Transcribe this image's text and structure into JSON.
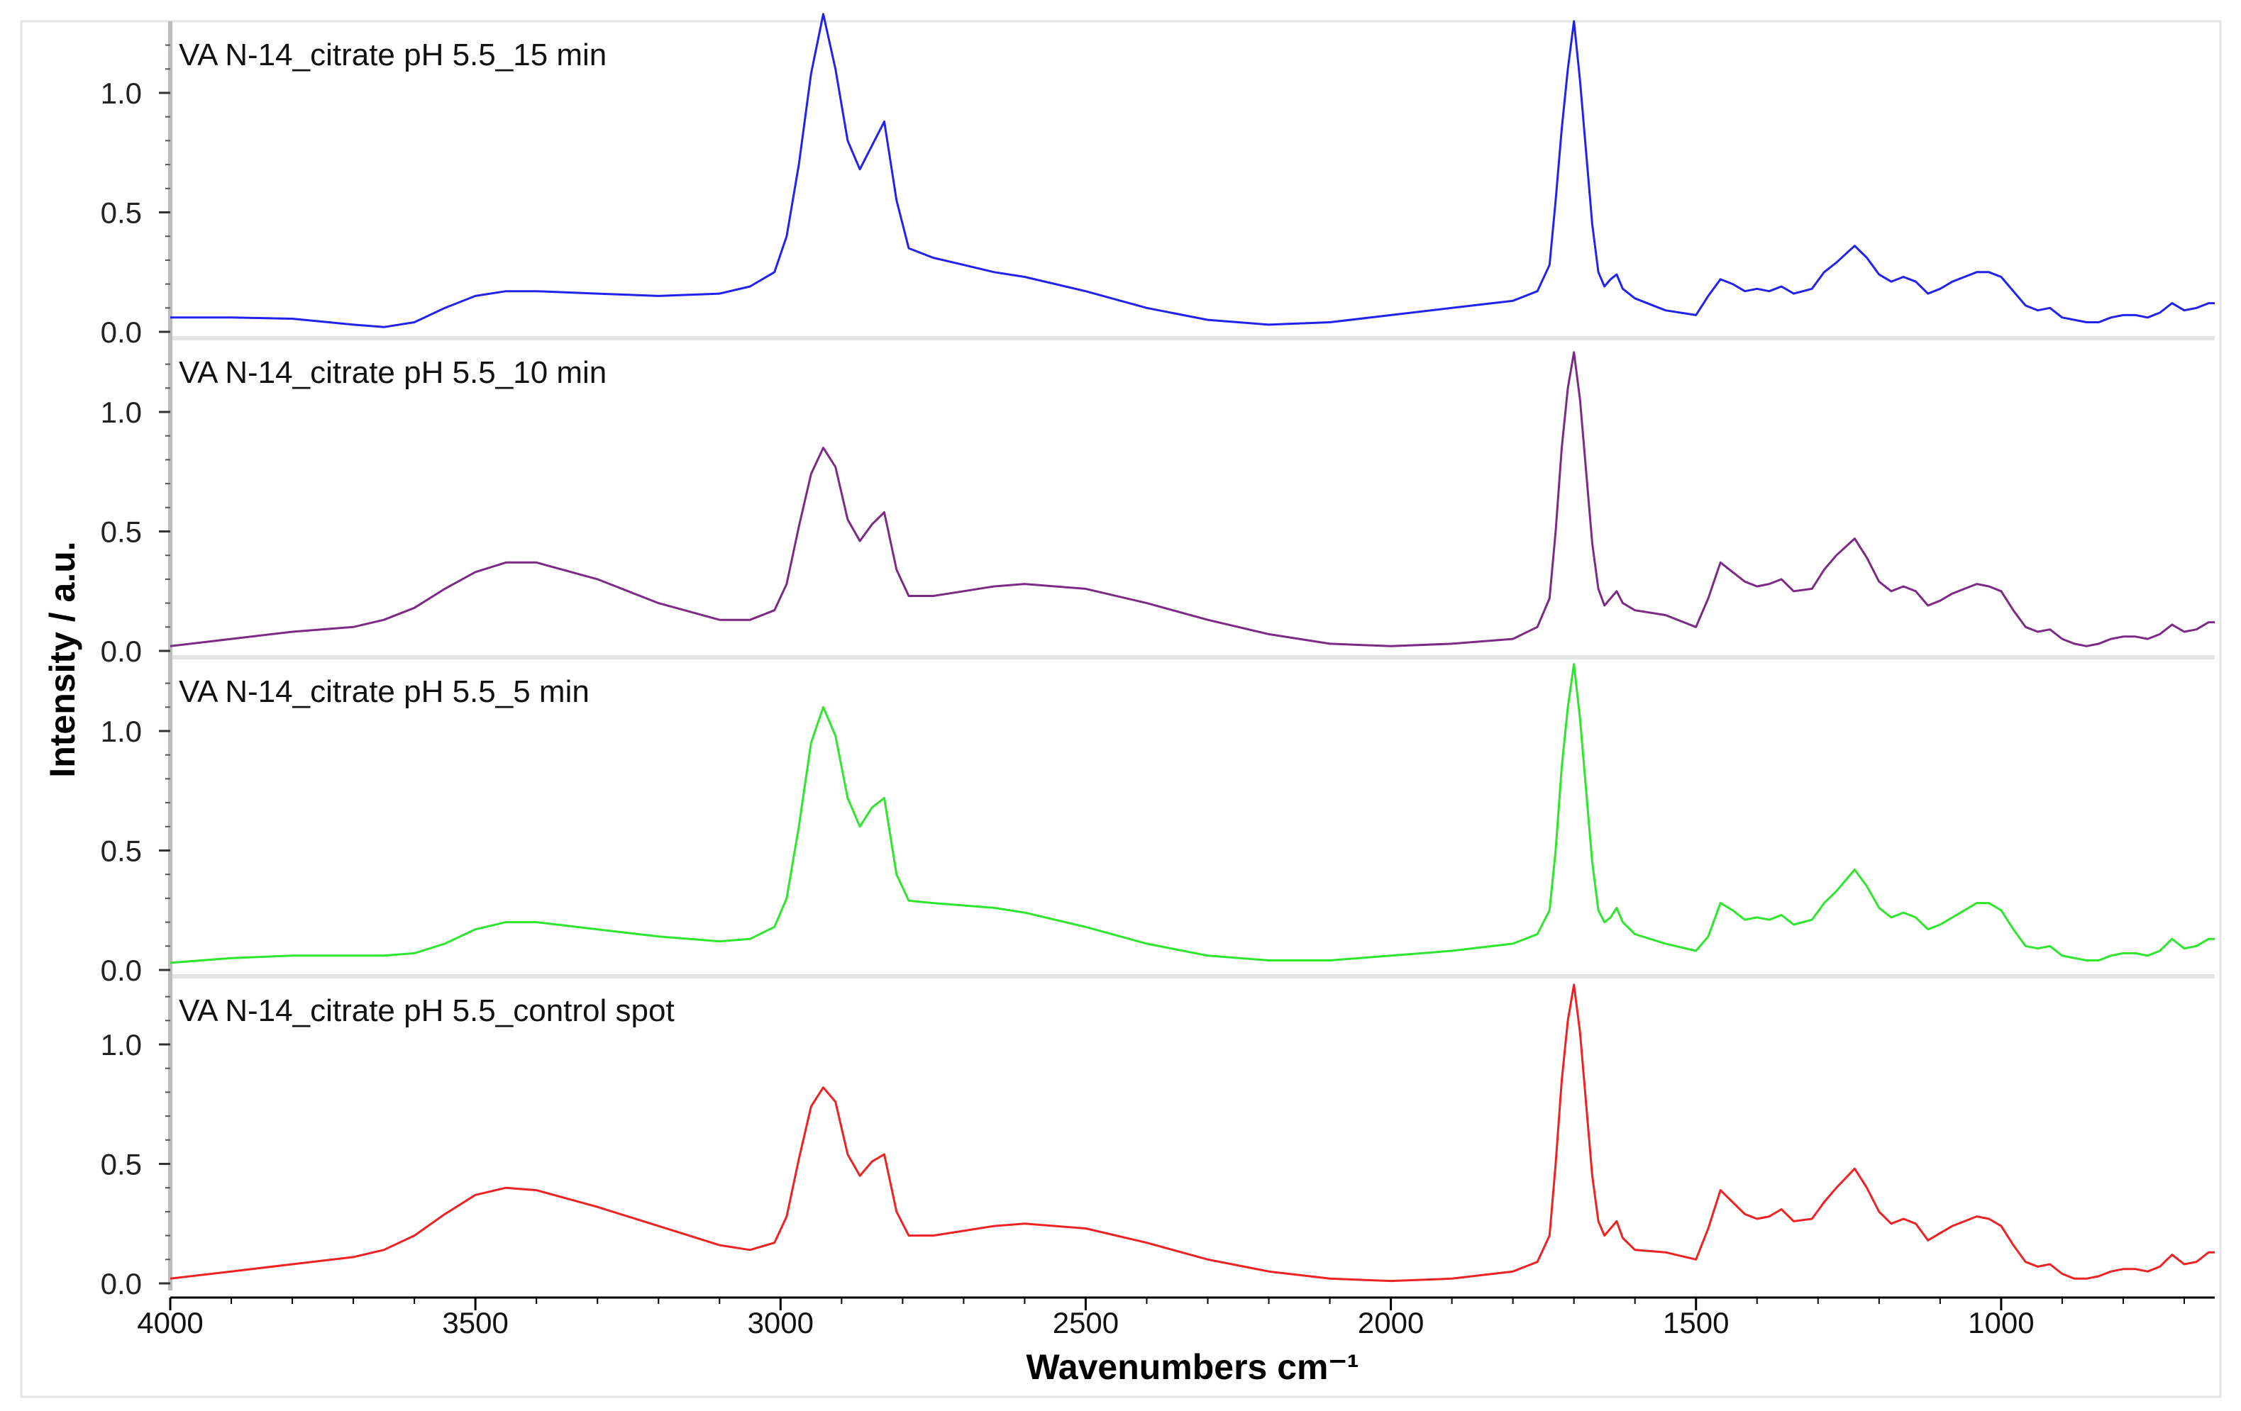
{
  "figure": {
    "xlabel": "Wavenumbers cm⁻¹",
    "ylabel": "Intensity / a.u."
  },
  "chart_data": {
    "type": "line",
    "xlabel": "Wavenumbers cm⁻¹",
    "ylabel": "Intensity / a.u.",
    "xlim": [
      4000,
      650
    ],
    "x_reversed": true,
    "x_ticks": [
      4000,
      3500,
      3000,
      2500,
      2000,
      1500,
      1000
    ],
    "x_tick_labels": [
      "4000",
      "3500",
      "3000",
      "2500",
      "2000",
      "1500",
      "1000"
    ],
    "grid": false,
    "legend": "none",
    "panels": [
      {
        "title": "VA N-14_citrate pH 5.5_15 min",
        "color": "#2222ee",
        "ylim": [
          0,
          1.3
        ],
        "y_ticks": [
          0,
          0.5,
          1
        ],
        "y_tick_labels": [
          "0.0",
          "0.5",
          "1.0"
        ],
        "x": [
          4000,
          3900,
          3800,
          3700,
          3650,
          3600,
          3550,
          3500,
          3450,
          3400,
          3300,
          3200,
          3100,
          3050,
          3010,
          2990,
          2970,
          2950,
          2930,
          2910,
          2890,
          2870,
          2850,
          2830,
          2810,
          2790,
          2750,
          2700,
          2650,
          2600,
          2500,
          2400,
          2300,
          2200,
          2100,
          2000,
          1900,
          1800,
          1760,
          1740,
          1730,
          1720,
          1710,
          1700,
          1690,
          1680,
          1670,
          1660,
          1650,
          1640,
          1630,
          1620,
          1600,
          1550,
          1500,
          1480,
          1460,
          1440,
          1420,
          1400,
          1380,
          1360,
          1340,
          1310,
          1290,
          1270,
          1240,
          1220,
          1200,
          1180,
          1160,
          1140,
          1120,
          1100,
          1080,
          1060,
          1040,
          1020,
          1000,
          980,
          960,
          940,
          920,
          900,
          880,
          860,
          840,
          820,
          800,
          780,
          760,
          740,
          720,
          700,
          680,
          660,
          650
        ],
        "y": [
          0.06,
          0.06,
          0.055,
          0.03,
          0.02,
          0.04,
          0.1,
          0.15,
          0.17,
          0.17,
          0.16,
          0.15,
          0.16,
          0.19,
          0.25,
          0.4,
          0.7,
          1.08,
          1.33,
          1.1,
          0.8,
          0.68,
          0.78,
          0.88,
          0.55,
          0.35,
          0.31,
          0.28,
          0.25,
          0.23,
          0.17,
          0.1,
          0.05,
          0.03,
          0.04,
          0.07,
          0.1,
          0.13,
          0.17,
          0.28,
          0.55,
          0.85,
          1.1,
          1.3,
          1.05,
          0.75,
          0.45,
          0.25,
          0.19,
          0.22,
          0.24,
          0.18,
          0.14,
          0.09,
          0.07,
          0.15,
          0.22,
          0.2,
          0.17,
          0.18,
          0.17,
          0.19,
          0.16,
          0.18,
          0.25,
          0.29,
          0.36,
          0.31,
          0.24,
          0.21,
          0.23,
          0.21,
          0.16,
          0.18,
          0.21,
          0.23,
          0.25,
          0.25,
          0.23,
          0.17,
          0.11,
          0.09,
          0.1,
          0.06,
          0.05,
          0.04,
          0.04,
          0.06,
          0.07,
          0.07,
          0.06,
          0.08,
          0.12,
          0.09,
          0.1,
          0.12,
          0.12
        ]
      },
      {
        "title": "VA N-14_citrate pH 5.5_10 min",
        "color": "#7d2a86",
        "ylim": [
          0,
          1.3
        ],
        "y_ticks": [
          0,
          0.5,
          1
        ],
        "y_tick_labels": [
          "0.0",
          "0.5",
          "1.0"
        ],
        "x": [
          4000,
          3900,
          3800,
          3700,
          3650,
          3600,
          3550,
          3500,
          3450,
          3400,
          3300,
          3200,
          3100,
          3050,
          3010,
          2990,
          2970,
          2950,
          2930,
          2910,
          2890,
          2870,
          2850,
          2830,
          2810,
          2790,
          2750,
          2700,
          2650,
          2600,
          2500,
          2400,
          2300,
          2200,
          2100,
          2000,
          1900,
          1800,
          1760,
          1740,
          1730,
          1720,
          1710,
          1700,
          1690,
          1680,
          1670,
          1660,
          1650,
          1640,
          1630,
          1620,
          1600,
          1550,
          1500,
          1480,
          1460,
          1440,
          1420,
          1400,
          1380,
          1360,
          1340,
          1310,
          1290,
          1270,
          1240,
          1220,
          1200,
          1180,
          1160,
          1140,
          1120,
          1100,
          1080,
          1060,
          1040,
          1020,
          1000,
          980,
          960,
          940,
          920,
          900,
          880,
          860,
          840,
          820,
          800,
          780,
          760,
          740,
          720,
          700,
          680,
          660,
          650
        ],
        "y": [
          0.02,
          0.05,
          0.08,
          0.1,
          0.13,
          0.18,
          0.26,
          0.33,
          0.37,
          0.37,
          0.3,
          0.2,
          0.13,
          0.13,
          0.17,
          0.28,
          0.52,
          0.74,
          0.85,
          0.77,
          0.55,
          0.46,
          0.53,
          0.58,
          0.34,
          0.23,
          0.23,
          0.25,
          0.27,
          0.28,
          0.26,
          0.2,
          0.13,
          0.07,
          0.03,
          0.02,
          0.03,
          0.05,
          0.1,
          0.22,
          0.5,
          0.85,
          1.1,
          1.25,
          1.05,
          0.75,
          0.45,
          0.26,
          0.19,
          0.22,
          0.25,
          0.2,
          0.17,
          0.15,
          0.1,
          0.22,
          0.37,
          0.33,
          0.29,
          0.27,
          0.28,
          0.3,
          0.25,
          0.26,
          0.34,
          0.4,
          0.47,
          0.39,
          0.29,
          0.25,
          0.27,
          0.25,
          0.19,
          0.21,
          0.24,
          0.26,
          0.28,
          0.27,
          0.25,
          0.17,
          0.1,
          0.08,
          0.09,
          0.05,
          0.03,
          0.02,
          0.03,
          0.05,
          0.06,
          0.06,
          0.05,
          0.07,
          0.11,
          0.08,
          0.09,
          0.12,
          0.12
        ]
      },
      {
        "title": "VA N-14_citrate pH 5.5_5 min",
        "color": "#2de62d",
        "ylim": [
          0,
          1.3
        ],
        "y_ticks": [
          0,
          0.5,
          1
        ],
        "y_tick_labels": [
          "0.0",
          "0.5",
          "1.0"
        ],
        "x": [
          4000,
          3900,
          3800,
          3700,
          3650,
          3600,
          3550,
          3500,
          3450,
          3400,
          3300,
          3200,
          3100,
          3050,
          3010,
          2990,
          2970,
          2950,
          2930,
          2910,
          2890,
          2870,
          2850,
          2830,
          2810,
          2790,
          2750,
          2700,
          2650,
          2600,
          2500,
          2400,
          2300,
          2200,
          2100,
          2000,
          1900,
          1800,
          1760,
          1740,
          1730,
          1720,
          1710,
          1700,
          1690,
          1680,
          1670,
          1660,
          1650,
          1640,
          1630,
          1620,
          1600,
          1550,
          1500,
          1480,
          1460,
          1440,
          1420,
          1400,
          1380,
          1360,
          1340,
          1310,
          1290,
          1270,
          1240,
          1220,
          1200,
          1180,
          1160,
          1140,
          1120,
          1100,
          1080,
          1060,
          1040,
          1020,
          1000,
          980,
          960,
          940,
          920,
          900,
          880,
          860,
          840,
          820,
          800,
          780,
          760,
          740,
          720,
          700,
          680,
          660,
          650
        ],
        "y": [
          0.03,
          0.05,
          0.06,
          0.06,
          0.06,
          0.07,
          0.11,
          0.17,
          0.2,
          0.2,
          0.17,
          0.14,
          0.12,
          0.13,
          0.18,
          0.3,
          0.6,
          0.95,
          1.1,
          0.98,
          0.72,
          0.6,
          0.68,
          0.72,
          0.4,
          0.29,
          0.28,
          0.27,
          0.26,
          0.24,
          0.18,
          0.11,
          0.06,
          0.04,
          0.04,
          0.06,
          0.08,
          0.11,
          0.15,
          0.25,
          0.5,
          0.85,
          1.1,
          1.28,
          1.05,
          0.75,
          0.45,
          0.25,
          0.2,
          0.22,
          0.26,
          0.2,
          0.15,
          0.11,
          0.08,
          0.14,
          0.28,
          0.25,
          0.21,
          0.22,
          0.21,
          0.23,
          0.19,
          0.21,
          0.28,
          0.33,
          0.42,
          0.35,
          0.26,
          0.22,
          0.24,
          0.22,
          0.17,
          0.19,
          0.22,
          0.25,
          0.28,
          0.28,
          0.25,
          0.17,
          0.1,
          0.09,
          0.1,
          0.06,
          0.05,
          0.04,
          0.04,
          0.06,
          0.07,
          0.07,
          0.06,
          0.08,
          0.13,
          0.09,
          0.1,
          0.13,
          0.13
        ]
      },
      {
        "title": "VA N-14_citrate pH 5.5_control spot",
        "color": "#ee2222",
        "ylim": [
          0,
          1.3
        ],
        "y_ticks": [
          0,
          0.5,
          1
        ],
        "y_tick_labels": [
          "0.0",
          "0.5",
          "1.0"
        ],
        "x": [
          4000,
          3900,
          3800,
          3700,
          3650,
          3600,
          3550,
          3500,
          3450,
          3400,
          3300,
          3200,
          3100,
          3050,
          3010,
          2990,
          2970,
          2950,
          2930,
          2910,
          2890,
          2870,
          2850,
          2830,
          2810,
          2790,
          2750,
          2700,
          2650,
          2600,
          2500,
          2400,
          2300,
          2200,
          2100,
          2000,
          1900,
          1800,
          1760,
          1740,
          1730,
          1720,
          1710,
          1700,
          1690,
          1680,
          1670,
          1660,
          1650,
          1640,
          1630,
          1620,
          1600,
          1550,
          1500,
          1480,
          1460,
          1440,
          1420,
          1400,
          1380,
          1360,
          1340,
          1310,
          1290,
          1270,
          1240,
          1220,
          1200,
          1180,
          1160,
          1140,
          1120,
          1100,
          1080,
          1060,
          1040,
          1020,
          1000,
          980,
          960,
          940,
          920,
          900,
          880,
          860,
          840,
          820,
          800,
          780,
          760,
          740,
          720,
          700,
          680,
          660,
          650
        ],
        "y": [
          0.02,
          0.05,
          0.08,
          0.11,
          0.14,
          0.2,
          0.29,
          0.37,
          0.4,
          0.39,
          0.32,
          0.24,
          0.16,
          0.14,
          0.17,
          0.28,
          0.52,
          0.74,
          0.82,
          0.76,
          0.54,
          0.45,
          0.51,
          0.54,
          0.3,
          0.2,
          0.2,
          0.22,
          0.24,
          0.25,
          0.23,
          0.17,
          0.1,
          0.05,
          0.02,
          0.01,
          0.02,
          0.05,
          0.09,
          0.2,
          0.5,
          0.85,
          1.1,
          1.25,
          1.05,
          0.75,
          0.45,
          0.26,
          0.2,
          0.23,
          0.26,
          0.19,
          0.14,
          0.13,
          0.1,
          0.23,
          0.39,
          0.34,
          0.29,
          0.27,
          0.28,
          0.31,
          0.26,
          0.27,
          0.34,
          0.4,
          0.48,
          0.4,
          0.3,
          0.25,
          0.27,
          0.25,
          0.18,
          0.21,
          0.24,
          0.26,
          0.28,
          0.27,
          0.24,
          0.16,
          0.09,
          0.07,
          0.08,
          0.04,
          0.02,
          0.02,
          0.03,
          0.05,
          0.06,
          0.06,
          0.05,
          0.07,
          0.12,
          0.08,
          0.09,
          0.13,
          0.13
        ]
      }
    ]
  }
}
